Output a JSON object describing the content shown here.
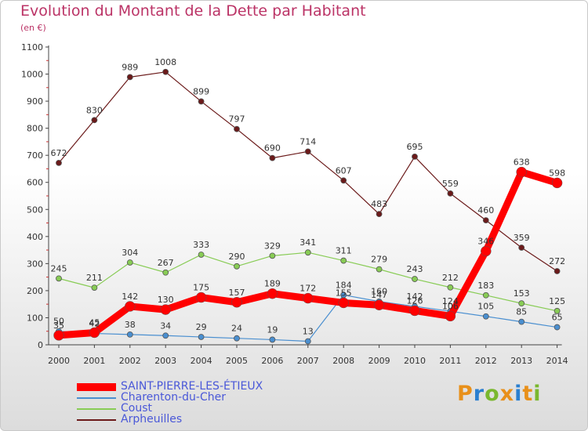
{
  "chart_data": {
    "type": "line",
    "title": "Evolution du Montant de la Dette par Habitant",
    "subtitle": "(en €)",
    "x": [
      "2000",
      "2001",
      "2002",
      "2003",
      "2004",
      "2005",
      "2006",
      "2007",
      "2008",
      "2009",
      "2010",
      "2011",
      "2012",
      "2013",
      "2014"
    ],
    "ylim": [
      0,
      1100
    ],
    "yticks": [
      0,
      100,
      200,
      300,
      400,
      500,
      600,
      700,
      800,
      900,
      1000,
      1100
    ],
    "grid": false,
    "legend_position": "bottom-left",
    "series": [
      {
        "name": "SAINT-PIERRE-LES-ÉTIEUX",
        "color": "#ff0000",
        "values": [
          35,
          45,
          142,
          130,
          175,
          157,
          189,
          172,
          155,
          147,
          126,
          106,
          346,
          638,
          598
        ],
        "labels": [
          "35",
          "45",
          "142",
          "130",
          "175",
          "157",
          "189",
          "172",
          "155",
          "147",
          "126",
          "106",
          "346",
          "638",
          "598"
        ]
      },
      {
        "name": "Charenton-du-Cher",
        "color": "#4a8fd0",
        "values": [
          50,
          42,
          38,
          34,
          29,
          24,
          19,
          13,
          184,
          160,
          142,
          124,
          105,
          85,
          65
        ],
        "labels": [
          "50",
          "42",
          "38",
          "34",
          "29",
          "24",
          "19",
          "13",
          "184",
          "160",
          "142",
          "124",
          "105",
          "85",
          "65"
        ]
      },
      {
        "name": "Coust",
        "color": "#88cc55",
        "values": [
          245,
          211,
          304,
          267,
          333,
          290,
          329,
          341,
          311,
          279,
          243,
          212,
          183,
          153,
          125
        ],
        "labels": [
          "245",
          "211",
          "304",
          "267",
          "333",
          "290",
          "329",
          "341",
          "311",
          "279",
          "243",
          "212",
          "183",
          "153",
          "125"
        ]
      },
      {
        "name": "Arpheuilles",
        "color": "#6b1a1a",
        "values": [
          672,
          830,
          989,
          1008,
          899,
          797,
          690,
          714,
          607,
          483,
          695,
          559,
          460,
          359,
          272
        ],
        "labels": [
          "672",
          "830",
          "989",
          "1008",
          "899",
          "797",
          "690",
          "714",
          "607",
          "483",
          "695",
          "559",
          "460",
          "359",
          "272"
        ]
      }
    ]
  },
  "logo": {
    "letters": [
      "P",
      "r",
      "o",
      "x",
      "i",
      "t",
      "i"
    ],
    "colors": [
      "#e8901a",
      "#2a7fd0",
      "#7ab82e",
      "#e8901a",
      "#2a7fd0",
      "#e8901a",
      "#7ab82e"
    ]
  }
}
